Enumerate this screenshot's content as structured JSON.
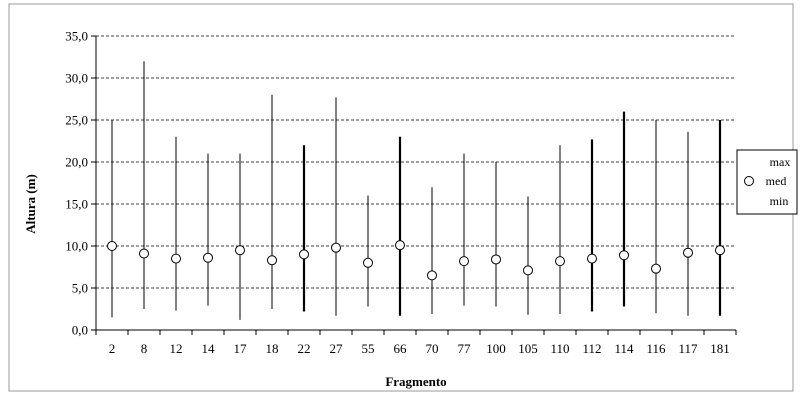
{
  "chart_data": {
    "type": "high-low-close",
    "xlabel": "Fragmento",
    "ylabel": "Altura (m)",
    "ylim": [
      0,
      35
    ],
    "yticks": [
      "0,0",
      "5,0",
      "10,0",
      "15,0",
      "20,0",
      "25,0",
      "30,0",
      "35,0"
    ],
    "grid": "horizontal dashed",
    "legend_position": "right",
    "legend": [
      "max",
      "med",
      "min"
    ],
    "categories": [
      "2",
      "8",
      "12",
      "14",
      "17",
      "18",
      "22",
      "27",
      "55",
      "66",
      "70",
      "77",
      "100",
      "105",
      "110",
      "112",
      "114",
      "116",
      "117",
      "181"
    ],
    "series": [
      {
        "name": "max",
        "values": [
          25.0,
          32.0,
          23.0,
          21.0,
          21.0,
          28.0,
          22.0,
          27.7,
          16.0,
          23.0,
          17.0,
          21.0,
          20.0,
          15.9,
          22.0,
          22.7,
          26.0,
          25.0,
          23.6,
          25.0
        ]
      },
      {
        "name": "med",
        "values": [
          10.0,
          9.1,
          8.5,
          8.6,
          9.5,
          8.3,
          9.0,
          9.8,
          8.0,
          10.1,
          6.5,
          8.2,
          8.4,
          7.1,
          8.2,
          8.5,
          8.9,
          7.3,
          9.2,
          9.5
        ]
      },
      {
        "name": "min",
        "values": [
          1.5,
          2.5,
          2.3,
          2.9,
          1.2,
          2.5,
          2.2,
          1.7,
          2.8,
          1.7,
          1.9,
          2.9,
          2.8,
          1.8,
          1.9,
          2.2,
          2.8,
          2.0,
          1.7,
          1.7
        ]
      }
    ]
  }
}
